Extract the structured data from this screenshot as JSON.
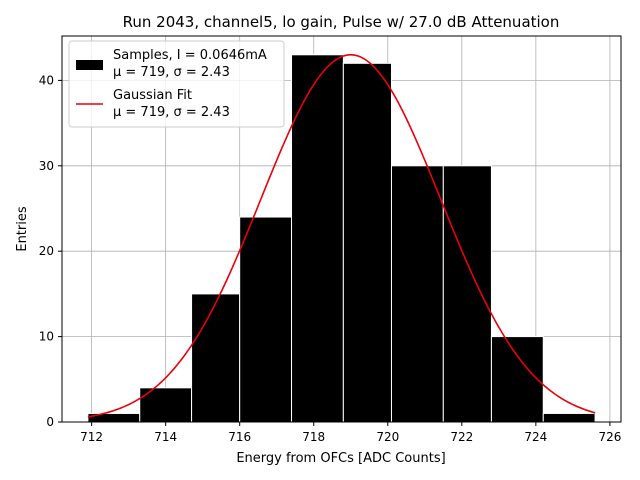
{
  "chart_data": {
    "type": "bar",
    "title": "Run 2043, channel5, lo gain, Pulse w/ 27.0 dB Attenuation",
    "xlabel": "Energy from OFCs [ADC Counts]",
    "ylabel": "Entries",
    "xlim": [
      711.2,
      726.3
    ],
    "ylim": [
      0,
      45.2
    ],
    "xticks": [
      712,
      714,
      716,
      718,
      720,
      722,
      724,
      726
    ],
    "yticks": [
      0,
      10,
      20,
      30,
      40
    ],
    "grid": true,
    "legend_position": "top-left",
    "bins": [
      {
        "start": 711.9,
        "end": 713.3,
        "count": 1
      },
      {
        "start": 713.3,
        "end": 714.7,
        "count": 4
      },
      {
        "start": 714.7,
        "end": 716.0,
        "count": 15
      },
      {
        "start": 716.0,
        "end": 717.4,
        "count": 24
      },
      {
        "start": 717.4,
        "end": 718.8,
        "count": 43
      },
      {
        "start": 718.8,
        "end": 720.1,
        "count": 42
      },
      {
        "start": 720.1,
        "end": 721.5,
        "count": 30
      },
      {
        "start": 721.5,
        "end": 722.8,
        "count": 30
      },
      {
        "start": 722.8,
        "end": 724.2,
        "count": 10
      },
      {
        "start": 724.2,
        "end": 725.6,
        "count": 1
      }
    ],
    "fit": {
      "mu": 719.0,
      "sigma": 2.43,
      "amplitude": 43.0,
      "x_range": [
        711.9,
        725.6
      ]
    },
    "series": [
      {
        "name": "Samples, I = 0.0646mA",
        "detail": "μ = 719, σ = 2.43",
        "color": "#000000",
        "kind": "histogram"
      },
      {
        "name": "Gaussian Fit",
        "detail": "μ = 719, σ = 2.43",
        "color": "#e8000b",
        "kind": "line"
      }
    ]
  }
}
